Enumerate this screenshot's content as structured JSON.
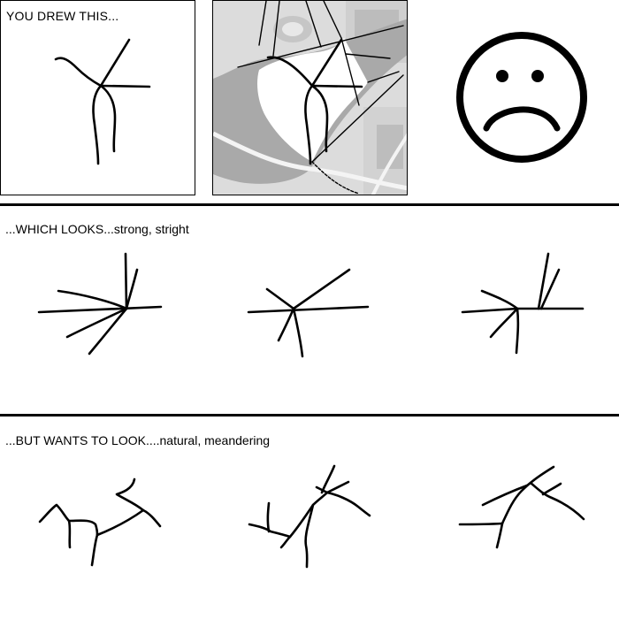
{
  "top": {
    "drawing_label": "YOU DREW THIS..."
  },
  "middle": {
    "label": "...WHICH LOOKS...strong, stright"
  },
  "bottom": {
    "label": "...BUT WANTS TO LOOK....natural, meandering"
  },
  "icons": {
    "face": "sad-face-icon"
  }
}
